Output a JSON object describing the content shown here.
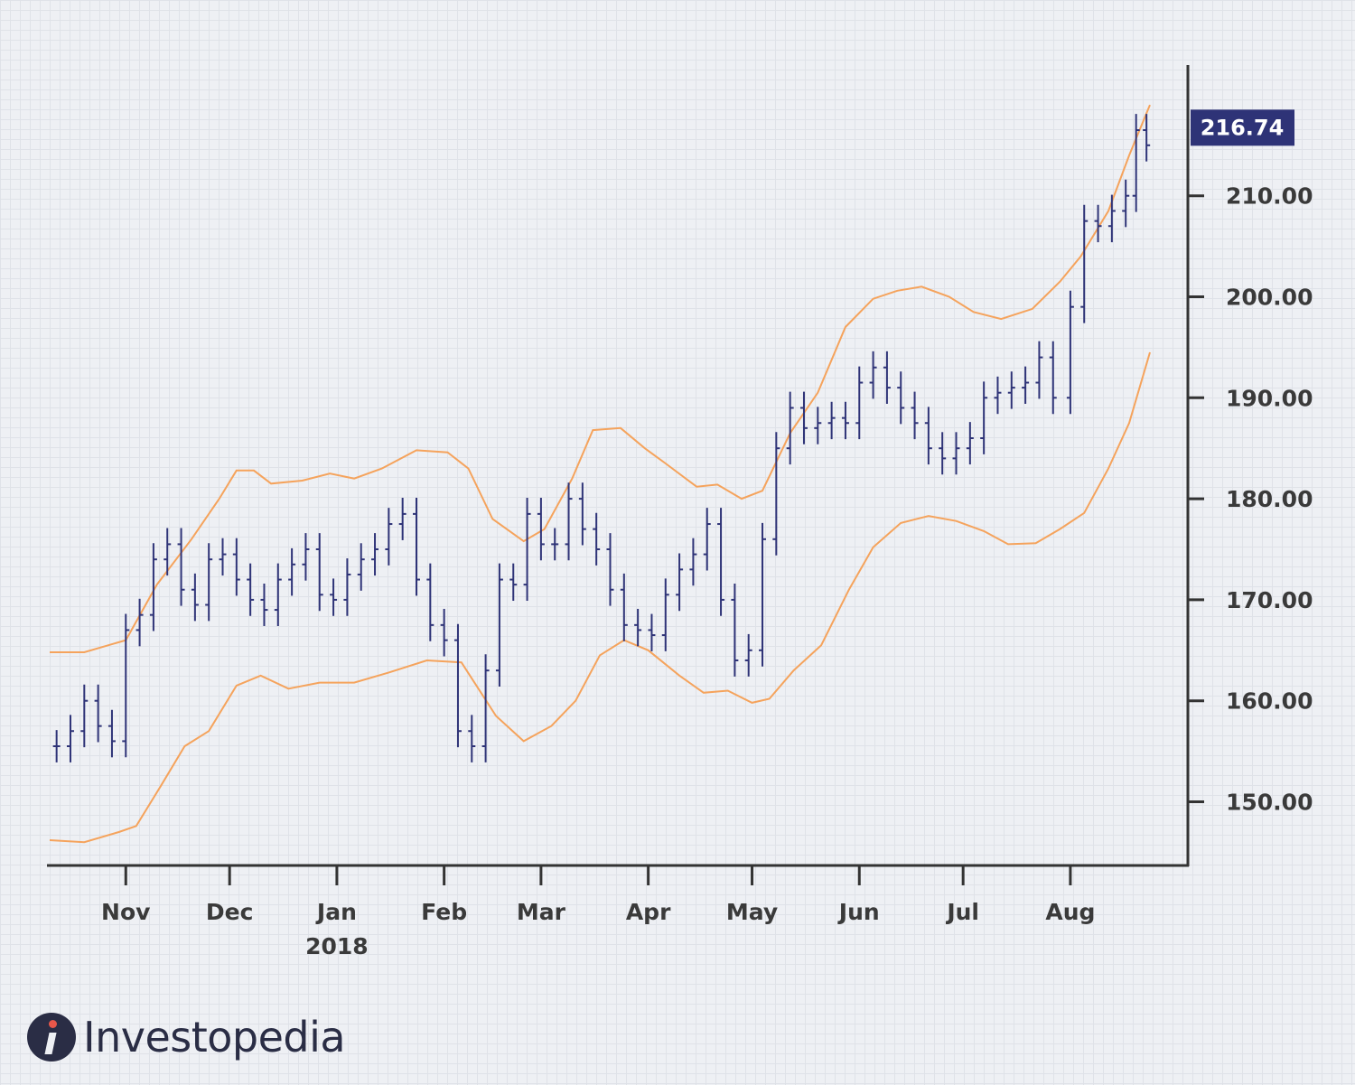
{
  "chart_data": {
    "type": "ohlc_with_bands",
    "current_price_label": "216.74",
    "y_ticks": [
      "150.00",
      "160.00",
      "170.00",
      "180.00",
      "190.00",
      "200.00",
      "210.00"
    ],
    "y_tick_values": [
      150,
      160,
      170,
      180,
      190,
      200,
      210
    ],
    "ylim": [
      144,
      223
    ],
    "x_ticks": [
      {
        "label": "Nov",
        "sub": ""
      },
      {
        "label": "Dec",
        "sub": ""
      },
      {
        "label": "Jan",
        "sub": "2018"
      },
      {
        "label": "Feb",
        "sub": ""
      },
      {
        "label": "Mar",
        "sub": ""
      },
      {
        "label": "Apr",
        "sub": ""
      },
      {
        "label": "May",
        "sub": ""
      },
      {
        "label": "Jun",
        "sub": ""
      },
      {
        "label": "Jul",
        "sub": ""
      },
      {
        "label": "Aug",
        "sub": ""
      }
    ],
    "x_tick_dates": [
      "2017-11-01",
      "2017-12-01",
      "2018-01-01",
      "2018-02-01",
      "2018-03-01",
      "2018-04-01",
      "2018-05-01",
      "2018-06-01",
      "2018-07-01",
      "2018-08-01"
    ],
    "x_range_dates": [
      "2017-10-10",
      "2018-08-24"
    ],
    "price_series": [
      [
        "2017-10-12",
        155.5
      ],
      [
        "2017-10-16",
        157.0
      ],
      [
        "2017-10-20",
        160.0
      ],
      [
        "2017-10-24",
        157.5
      ],
      [
        "2017-10-28",
        156.0
      ],
      [
        "2017-11-01",
        167.0
      ],
      [
        "2017-11-05",
        168.5
      ],
      [
        "2017-11-09",
        174.0
      ],
      [
        "2017-11-13",
        175.5
      ],
      [
        "2017-11-17",
        171.0
      ],
      [
        "2017-11-21",
        169.5
      ],
      [
        "2017-11-25",
        174.0
      ],
      [
        "2017-11-29",
        174.5
      ],
      [
        "2017-12-03",
        172.0
      ],
      [
        "2017-12-07",
        170.0
      ],
      [
        "2017-12-11",
        169.0
      ],
      [
        "2017-12-15",
        172.0
      ],
      [
        "2017-12-19",
        173.5
      ],
      [
        "2017-12-23",
        175.0
      ],
      [
        "2017-12-27",
        170.5
      ],
      [
        "2017-12-31",
        170.0
      ],
      [
        "2018-01-04",
        172.5
      ],
      [
        "2018-01-08",
        174.0
      ],
      [
        "2018-01-12",
        175.0
      ],
      [
        "2018-01-16",
        177.5
      ],
      [
        "2018-01-20",
        178.5
      ],
      [
        "2018-01-24",
        172.0
      ],
      [
        "2018-01-28",
        167.5
      ],
      [
        "2018-02-01",
        166.0
      ],
      [
        "2018-02-05",
        157.0
      ],
      [
        "2018-02-09",
        155.5
      ],
      [
        "2018-02-13",
        163.0
      ],
      [
        "2018-02-17",
        172.0
      ],
      [
        "2018-02-21",
        171.5
      ],
      [
        "2018-02-25",
        178.5
      ],
      [
        "2018-03-01",
        175.5
      ],
      [
        "2018-03-05",
        175.5
      ],
      [
        "2018-03-09",
        180.0
      ],
      [
        "2018-03-13",
        177.0
      ],
      [
        "2018-03-17",
        175.0
      ],
      [
        "2018-03-21",
        171.0
      ],
      [
        "2018-03-25",
        167.5
      ],
      [
        "2018-03-29",
        167.0
      ],
      [
        "2018-04-02",
        166.5
      ],
      [
        "2018-04-06",
        170.5
      ],
      [
        "2018-04-10",
        173.0
      ],
      [
        "2018-04-14",
        174.5
      ],
      [
        "2018-04-18",
        177.5
      ],
      [
        "2018-04-22",
        170.0
      ],
      [
        "2018-04-26",
        164.0
      ],
      [
        "2018-04-30",
        165.0
      ],
      [
        "2018-05-04",
        176.0
      ],
      [
        "2018-05-08",
        185.0
      ],
      [
        "2018-05-12",
        189.0
      ],
      [
        "2018-05-16",
        187.0
      ],
      [
        "2018-05-20",
        187.5
      ],
      [
        "2018-05-24",
        188.0
      ],
      [
        "2018-05-28",
        187.5
      ],
      [
        "2018-06-01",
        191.5
      ],
      [
        "2018-06-05",
        193.0
      ],
      [
        "2018-06-09",
        191.0
      ],
      [
        "2018-06-13",
        189.0
      ],
      [
        "2018-06-17",
        187.5
      ],
      [
        "2018-06-21",
        185.0
      ],
      [
        "2018-06-25",
        184.0
      ],
      [
        "2018-06-29",
        185.0
      ],
      [
        "2018-07-03",
        186.0
      ],
      [
        "2018-07-07",
        190.0
      ],
      [
        "2018-07-11",
        190.5
      ],
      [
        "2018-07-15",
        191.0
      ],
      [
        "2018-07-19",
        191.5
      ],
      [
        "2018-07-23",
        194.0
      ],
      [
        "2018-07-27",
        190.0
      ],
      [
        "2018-08-01",
        199.0
      ],
      [
        "2018-08-05",
        207.5
      ],
      [
        "2018-08-09",
        207.0
      ],
      [
        "2018-08-13",
        208.5
      ],
      [
        "2018-08-17",
        210.0
      ],
      [
        "2018-08-20",
        216.5
      ],
      [
        "2018-08-23",
        215.0
      ]
    ],
    "upper_band": [
      [
        "2017-10-10",
        164.8
      ],
      [
        "2017-10-20",
        164.8
      ],
      [
        "2017-11-01",
        166.0
      ],
      [
        "2017-11-10",
        171.5
      ],
      [
        "2017-11-20",
        176.0
      ],
      [
        "2017-11-28",
        180.0
      ],
      [
        "2017-12-03",
        182.8
      ],
      [
        "2017-12-08",
        182.8
      ],
      [
        "2017-12-13",
        181.5
      ],
      [
        "2017-12-22",
        181.8
      ],
      [
        "2017-12-30",
        182.5
      ],
      [
        "2018-01-06",
        182.0
      ],
      [
        "2018-01-14",
        183.0
      ],
      [
        "2018-01-24",
        184.8
      ],
      [
        "2018-02-02",
        184.6
      ],
      [
        "2018-02-08",
        183.0
      ],
      [
        "2018-02-15",
        178.0
      ],
      [
        "2018-02-24",
        175.8
      ],
      [
        "2018-03-02",
        177.0
      ],
      [
        "2018-03-10",
        182.0
      ],
      [
        "2018-03-16",
        186.8
      ],
      [
        "2018-03-24",
        187.0
      ],
      [
        "2018-03-31",
        185.0
      ],
      [
        "2018-04-06",
        183.5
      ],
      [
        "2018-04-15",
        181.2
      ],
      [
        "2018-04-21",
        181.4
      ],
      [
        "2018-04-28",
        180.0
      ],
      [
        "2018-05-04",
        180.8
      ],
      [
        "2018-05-12",
        186.5
      ],
      [
        "2018-05-20",
        190.5
      ],
      [
        "2018-05-28",
        197.0
      ],
      [
        "2018-06-05",
        199.8
      ],
      [
        "2018-06-12",
        200.6
      ],
      [
        "2018-06-19",
        201.0
      ],
      [
        "2018-06-27",
        200.0
      ],
      [
        "2018-07-04",
        198.5
      ],
      [
        "2018-07-12",
        197.8
      ],
      [
        "2018-07-21",
        198.8
      ],
      [
        "2018-07-29",
        201.5
      ],
      [
        "2018-08-04",
        204.0
      ],
      [
        "2018-08-12",
        208.5
      ],
      [
        "2018-08-18",
        214.0
      ],
      [
        "2018-08-24",
        219.0
      ]
    ],
    "lower_band": [
      [
        "2017-10-10",
        146.2
      ],
      [
        "2017-10-20",
        146.0
      ],
      [
        "2017-10-30",
        147.0
      ],
      [
        "2017-11-04",
        147.6
      ],
      [
        "2017-11-11",
        151.5
      ],
      [
        "2017-11-18",
        155.5
      ],
      [
        "2017-11-25",
        157.0
      ],
      [
        "2017-12-03",
        161.5
      ],
      [
        "2017-12-10",
        162.5
      ],
      [
        "2017-12-18",
        161.2
      ],
      [
        "2017-12-27",
        161.8
      ],
      [
        "2018-01-06",
        161.8
      ],
      [
        "2018-01-16",
        162.8
      ],
      [
        "2018-01-27",
        164.0
      ],
      [
        "2018-02-06",
        163.8
      ],
      [
        "2018-02-16",
        158.5
      ],
      [
        "2018-02-24",
        156.0
      ],
      [
        "2018-03-04",
        157.5
      ],
      [
        "2018-03-11",
        160.0
      ],
      [
        "2018-03-18",
        164.5
      ],
      [
        "2018-03-25",
        166.0
      ],
      [
        "2018-04-01",
        165.0
      ],
      [
        "2018-04-10",
        162.5
      ],
      [
        "2018-04-17",
        160.8
      ],
      [
        "2018-04-24",
        161.0
      ],
      [
        "2018-05-01",
        159.8
      ],
      [
        "2018-05-06",
        160.2
      ],
      [
        "2018-05-13",
        163.0
      ],
      [
        "2018-05-21",
        165.5
      ],
      [
        "2018-05-29",
        171.0
      ],
      [
        "2018-06-05",
        175.2
      ],
      [
        "2018-06-13",
        177.6
      ],
      [
        "2018-06-21",
        178.3
      ],
      [
        "2018-06-29",
        177.8
      ],
      [
        "2018-07-07",
        176.8
      ],
      [
        "2018-07-14",
        175.5
      ],
      [
        "2018-07-22",
        175.6
      ],
      [
        "2018-07-29",
        177.0
      ],
      [
        "2018-08-05",
        178.6
      ],
      [
        "2018-08-12",
        183.0
      ],
      [
        "2018-08-18",
        187.5
      ],
      [
        "2018-08-24",
        194.5
      ]
    ],
    "colors": {
      "bars": "#2e3377",
      "bands": "#f5a35c",
      "axis": "#333333",
      "tag": "#2e3377"
    },
    "grid": true
  },
  "logo": {
    "text": "Investopedia"
  }
}
